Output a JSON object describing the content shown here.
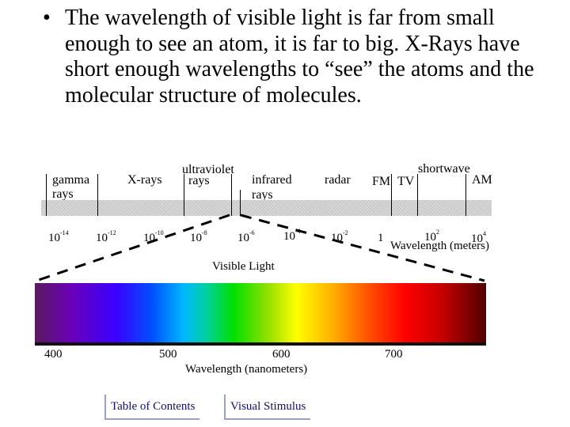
{
  "bullet": {
    "marker": "•",
    "text": "The wavelength of visible light is far from small enough to see an atom, it is far to big. X-Rays have short enough wavelengths to “see” the atoms and the molecular structure of molecules."
  },
  "spectrum_labels": {
    "gamma_1": "gamma",
    "gamma_2": "rays",
    "xrays": "X-rays",
    "uv_1": "ultraviolet",
    "uv_2": "rays",
    "ir_1": "infrared",
    "ir_2": "rays",
    "radar": "radar",
    "fm": "FM",
    "tv": "TV",
    "shortwave": "shortwave",
    "am": "AM"
  },
  "wavelength_ticks": [
    {
      "base": "10",
      "exp": "-14"
    },
    {
      "base": "10",
      "exp": "-12"
    },
    {
      "base": "10",
      "exp": "-10"
    },
    {
      "base": "10",
      "exp": "-8"
    },
    {
      "base": "10",
      "exp": "-6"
    },
    {
      "base": "10",
      "exp": "-4"
    },
    {
      "base": "10",
      "exp": "-2"
    },
    {
      "base": "1",
      "exp": ""
    },
    {
      "base": "10",
      "exp": "2"
    },
    {
      "base": "10",
      "exp": "4"
    }
  ],
  "wavelength_axis_label": "Wavelength (meters)",
  "visible_light_label": "Visible Light",
  "nanometer_ticks": [
    "400",
    "500",
    "600",
    "700"
  ],
  "nanometer_axis_label": "Wavelength (nanometers)",
  "buttons": {
    "toc": "Table of Contents",
    "visual": "Visual Stimulus"
  },
  "colors": {
    "button_text": "#10106a",
    "button_border": "#9aa0c8",
    "band": "#d9d9d9"
  }
}
